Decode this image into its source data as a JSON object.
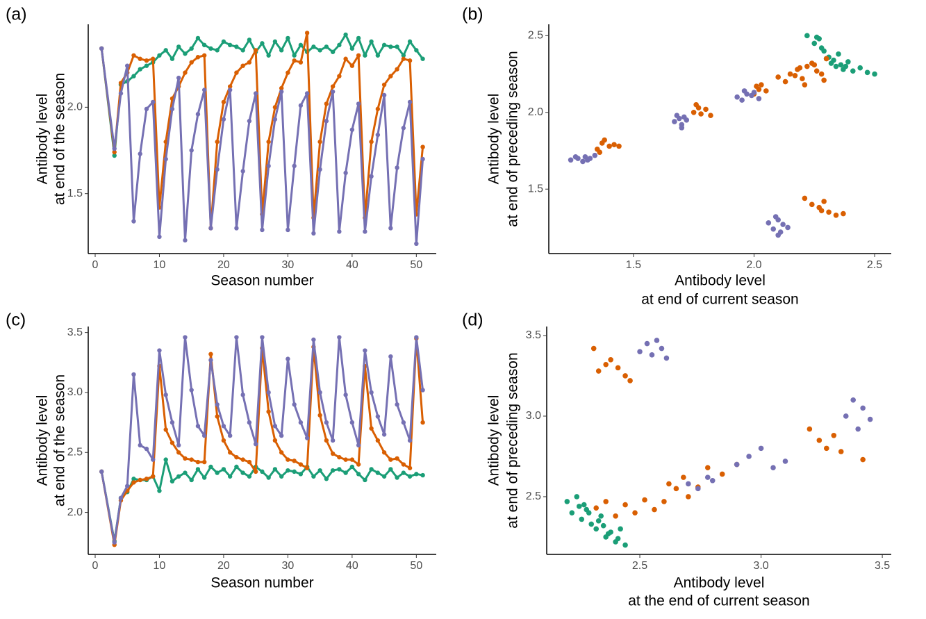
{
  "chart_data": [
    {
      "type": "line",
      "panel_label": "(a)",
      "xlabel": [
        "Season number"
      ],
      "ylabel": [
        "Antibody level",
        "at end of the season"
      ],
      "xlim": [
        -1.08,
        53.1
      ],
      "ylim": [
        1.153,
        2.48
      ],
      "xticks": [
        0,
        10,
        20,
        30,
        40,
        50
      ],
      "yticks": [
        1.5,
        {
          "value": 2,
          "label": "2.0"
        }
      ],
      "x": [
        1,
        3,
        4,
        5,
        6,
        7,
        8,
        9,
        10,
        11,
        12,
        13,
        14,
        15,
        16,
        17,
        18,
        19,
        20,
        21,
        22,
        23,
        24,
        25,
        26,
        27,
        28,
        29,
        30,
        31,
        32,
        33,
        34,
        35,
        36,
        37,
        38,
        39,
        40,
        41,
        42,
        43,
        44,
        45,
        46,
        47,
        48,
        49,
        50,
        51
      ],
      "series": [
        {
          "color": "#1b9e77",
          "values": [
            2.34,
            1.72,
            2.13,
            2.15,
            2.18,
            2.22,
            2.24,
            2.26,
            2.3,
            2.33,
            2.28,
            2.35,
            2.31,
            2.34,
            2.4,
            2.36,
            2.34,
            2.33,
            2.38,
            2.36,
            2.35,
            2.33,
            2.39,
            2.32,
            2.37,
            2.3,
            2.38,
            2.33,
            2.4,
            2.3,
            2.36,
            2.32,
            2.35,
            2.33,
            2.35,
            2.32,
            2.36,
            2.42,
            2.34,
            2.4,
            2.3,
            2.38,
            2.3,
            2.36,
            2.35,
            2.35,
            2.3,
            2.38,
            2.33,
            2.28
          ]
        },
        {
          "color": "#d95f02",
          "values": [
            2.34,
            1.74,
            2.14,
            2.2,
            2.3,
            2.28,
            2.27,
            2.28,
            1.42,
            1.8,
            2.05,
            2.12,
            2.2,
            2.26,
            2.29,
            2.3,
            1.3,
            1.8,
            2.03,
            2.12,
            2.2,
            2.24,
            2.26,
            2.33,
            1.38,
            1.8,
            2.0,
            2.11,
            2.2,
            2.27,
            2.26,
            2.43,
            1.36,
            1.8,
            2.02,
            2.12,
            2.18,
            2.28,
            2.24,
            2.3,
            1.36,
            1.8,
            1.99,
            2.13,
            2.18,
            2.22,
            2.28,
            2.27,
            1.38,
            1.77
          ]
        },
        {
          "color": "#7570b3",
          "values": [
            2.34,
            1.76,
            2.08,
            2.24,
            1.34,
            1.73,
            1.99,
            2.03,
            1.25,
            1.7,
            1.99,
            2.17,
            1.23,
            1.75,
            1.96,
            2.1,
            1.3,
            1.64,
            1.93,
            2.1,
            1.3,
            1.63,
            1.92,
            2.08,
            1.29,
            1.66,
            1.93,
            2.09,
            1.29,
            1.66,
            2.01,
            2.08,
            1.27,
            1.64,
            1.92,
            2.09,
            1.28,
            1.62,
            1.87,
            2.02,
            1.28,
            1.6,
            1.84,
            2.07,
            1.3,
            1.65,
            1.88,
            2.03,
            1.21,
            1.7
          ]
        }
      ]
    },
    {
      "type": "scatter",
      "panel_label": "(b)",
      "xlabel": [
        "Antibody level",
        "at end of current season"
      ],
      "ylabel": [
        "Antibody level",
        "at end of preceding season"
      ],
      "xlim": [
        1.149,
        2.569
      ],
      "ylim": [
        1.08,
        2.574
      ],
      "xticks": [
        1.5,
        {
          "value": 2,
          "label": "2.0"
        },
        2.5
      ],
      "yticks": [
        1.5,
        {
          "value": 2,
          "label": "2.0"
        },
        2.5
      ],
      "series": [
        {
          "color": "#1b9e77",
          "x": [
            2.22,
            2.25,
            2.27,
            2.29,
            2.3,
            2.32,
            2.34,
            2.35,
            2.37,
            2.39,
            2.41,
            2.44,
            2.47,
            2.5,
            2.28,
            2.31,
            2.36,
            2.26,
            2.33,
            2.38
          ],
          "y": [
            2.5,
            2.45,
            2.48,
            2.4,
            2.35,
            2.32,
            2.3,
            2.38,
            2.28,
            2.33,
            2.27,
            2.29,
            2.26,
            2.25,
            2.42,
            2.36,
            2.31,
            2.49,
            2.34,
            2.3
          ]
        },
        {
          "color": "#d95f02",
          "x": [
            1.35,
            1.37,
            1.38,
            1.4,
            1.42,
            1.44,
            1.36,
            1.75,
            1.77,
            1.78,
            1.8,
            1.82,
            1.76,
            2.0,
            2.02,
            2.03,
            2.05,
            2.01,
            2.1,
            2.13,
            2.15,
            2.18,
            2.2,
            2.22,
            2.24,
            2.26,
            2.28,
            2.3,
            2.21,
            2.25,
            2.17,
            2.19,
            2.29,
            2.21,
            2.24,
            2.27,
            2.29,
            2.31,
            2.34,
            2.37,
            2.28
          ],
          "y": [
            1.76,
            1.8,
            1.82,
            1.78,
            1.79,
            1.78,
            1.74,
            2.0,
            2.03,
            1.99,
            2.02,
            1.98,
            2.05,
            2.12,
            2.15,
            2.18,
            2.14,
            2.17,
            2.23,
            2.2,
            2.25,
            2.28,
            2.22,
            2.3,
            2.32,
            2.27,
            2.25,
            2.35,
            2.18,
            2.31,
            2.24,
            2.29,
            2.21,
            1.44,
            1.4,
            1.38,
            1.42,
            1.35,
            1.33,
            1.34,
            1.36
          ]
        },
        {
          "color": "#7570b3",
          "x": [
            1.24,
            1.27,
            1.29,
            1.3,
            1.32,
            1.34,
            1.26,
            1.31,
            1.67,
            1.69,
            1.7,
            1.71,
            1.72,
            1.68,
            1.7,
            1.93,
            1.95,
            1.97,
            1.99,
            2.0,
            2.02,
            1.96,
            2.06,
            2.08,
            2.1,
            2.11,
            2.12,
            2.14,
            2.09,
            2.1
          ],
          "y": [
            1.69,
            1.7,
            1.68,
            1.71,
            1.7,
            1.72,
            1.71,
            1.69,
            1.94,
            1.96,
            1.92,
            1.97,
            1.95,
            1.98,
            1.9,
            2.1,
            2.08,
            2.12,
            2.11,
            2.13,
            2.09,
            2.14,
            1.28,
            1.24,
            1.3,
            1.22,
            1.27,
            1.25,
            1.32,
            1.2
          ]
        }
      ]
    },
    {
      "type": "line",
      "panel_label": "(c)",
      "xlabel": [
        "Season number"
      ],
      "ylabel": [
        "Antibody level",
        "at end of the season"
      ],
      "xlim": [
        -1.08,
        53.1
      ],
      "ylim": [
        1.65,
        3.55
      ],
      "xticks": [
        0,
        10,
        20,
        30,
        40,
        50
      ],
      "yticks": [
        {
          "value": 2,
          "label": "2.0"
        },
        2.5,
        {
          "value": 3,
          "label": "3.0"
        },
        3.5
      ],
      "x": [
        1,
        3,
        4,
        5,
        6,
        7,
        8,
        9,
        10,
        11,
        12,
        13,
        14,
        15,
        16,
        17,
        18,
        19,
        20,
        21,
        22,
        23,
        24,
        25,
        26,
        27,
        28,
        29,
        30,
        31,
        32,
        33,
        34,
        35,
        36,
        37,
        38,
        39,
        40,
        41,
        42,
        43,
        44,
        45,
        46,
        47,
        48,
        49,
        50,
        51
      ],
      "series": [
        {
          "color": "#1b9e77",
          "values": [
            2.34,
            1.76,
            2.12,
            2.17,
            2.28,
            2.27,
            2.27,
            2.3,
            2.18,
            2.44,
            2.26,
            2.3,
            2.33,
            2.27,
            2.36,
            2.29,
            2.38,
            2.33,
            2.36,
            2.3,
            2.38,
            2.33,
            2.3,
            2.38,
            2.34,
            2.29,
            2.36,
            2.3,
            2.35,
            2.34,
            2.32,
            2.38,
            2.3,
            2.35,
            2.28,
            2.35,
            2.36,
            2.33,
            2.38,
            2.32,
            2.27,
            2.36,
            2.33,
            2.3,
            2.36,
            2.29,
            2.33,
            2.3,
            2.32,
            2.31
          ]
        },
        {
          "color": "#d95f02",
          "values": [
            2.34,
            1.73,
            2.1,
            2.18,
            2.25,
            2.27,
            2.28,
            2.3,
            3.22,
            2.69,
            2.58,
            2.5,
            2.45,
            2.44,
            2.42,
            2.42,
            3.32,
            2.8,
            2.6,
            2.5,
            2.46,
            2.44,
            2.42,
            2.34,
            3.37,
            2.84,
            2.6,
            2.5,
            2.44,
            2.43,
            2.4,
            2.37,
            3.38,
            2.81,
            2.6,
            2.49,
            2.46,
            2.44,
            2.44,
            2.4,
            3.22,
            2.7,
            2.6,
            2.5,
            2.44,
            2.45,
            2.4,
            2.37,
            3.45,
            2.75
          ]
        },
        {
          "color": "#7570b3",
          "values": [
            2.34,
            1.75,
            2.12,
            2.22,
            3.15,
            2.56,
            2.53,
            2.44,
            3.35,
            2.98,
            2.75,
            2.56,
            3.46,
            3.02,
            2.72,
            2.64,
            3.27,
            2.9,
            2.72,
            2.64,
            3.46,
            2.98,
            2.75,
            2.57,
            3.46,
            3.0,
            2.72,
            2.64,
            3.28,
            2.9,
            2.75,
            2.62,
            3.44,
            3.0,
            2.75,
            2.6,
            3.46,
            2.98,
            2.75,
            2.56,
            3.35,
            3.0,
            2.8,
            2.65,
            3.3,
            2.9,
            2.75,
            2.6,
            3.46,
            3.02
          ]
        }
      ]
    },
    {
      "type": "scatter",
      "panel_label": "(d)",
      "xlabel": [
        "Antibody level",
        "at the end of current season"
      ],
      "ylabel": [
        "Antibody level",
        "at end of preceding season"
      ],
      "xlim": [
        2.116,
        3.537
      ],
      "ylim": [
        2.142,
        3.556
      ],
      "xticks": [
        2.5,
        {
          "value": 3,
          "label": "3.0"
        },
        3.5
      ],
      "yticks": [
        2.5,
        {
          "value": 3,
          "label": "3.0"
        },
        3.5
      ],
      "series": [
        {
          "color": "#1b9e77",
          "x": [
            2.2,
            2.22,
            2.24,
            2.26,
            2.28,
            2.3,
            2.32,
            2.34,
            2.36,
            2.38,
            2.4,
            2.42,
            2.44,
            2.25,
            2.29,
            2.33,
            2.37,
            2.41,
            2.27,
            2.35
          ],
          "y": [
            2.47,
            2.4,
            2.5,
            2.36,
            2.42,
            2.33,
            2.3,
            2.38,
            2.25,
            2.28,
            2.22,
            2.3,
            2.2,
            2.44,
            2.4,
            2.35,
            2.27,
            2.24,
            2.45,
            2.32
          ]
        },
        {
          "color": "#d95f02",
          "x": [
            2.31,
            2.33,
            2.36,
            2.38,
            2.41,
            2.44,
            2.46,
            2.32,
            2.36,
            2.4,
            2.44,
            2.48,
            2.52,
            2.56,
            2.6,
            2.65,
            2.7,
            2.62,
            2.68,
            2.74,
            2.78,
            2.84,
            2.9,
            3.2,
            3.24,
            3.27,
            3.3,
            3.33,
            3.42
          ],
          "y": [
            3.42,
            3.28,
            3.32,
            3.35,
            3.3,
            3.25,
            3.22,
            2.43,
            2.47,
            2.38,
            2.45,
            2.4,
            2.48,
            2.42,
            2.47,
            2.55,
            2.5,
            2.58,
            2.62,
            2.56,
            2.68,
            2.64,
            2.7,
            2.92,
            2.85,
            2.8,
            2.88,
            2.78,
            2.73
          ]
        },
        {
          "color": "#7570b3",
          "x": [
            2.5,
            2.53,
            2.55,
            2.57,
            2.59,
            2.61,
            2.7,
            2.74,
            2.78,
            2.8,
            2.9,
            2.95,
            3.0,
            3.05,
            3.1,
            3.35,
            3.38,
            3.4,
            3.42,
            3.45
          ],
          "y": [
            3.4,
            3.45,
            3.38,
            3.47,
            3.42,
            3.36,
            2.58,
            2.55,
            2.62,
            2.6,
            2.7,
            2.75,
            2.8,
            2.68,
            2.72,
            3.0,
            3.1,
            2.92,
            3.05,
            2.98
          ]
        }
      ]
    }
  ]
}
